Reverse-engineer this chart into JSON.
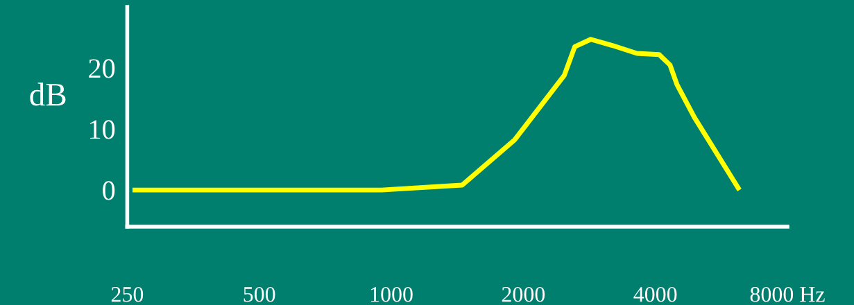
{
  "chart_data": {
    "type": "line",
    "ylabel": "dB",
    "log": "x",
    "grid": false,
    "marker": "none",
    "line_style": "solid",
    "x": [
      257,
      950,
      1450,
      1910,
      2480,
      2620,
      2850,
      3190,
      3630,
      4080,
      4320,
      4480,
      4910,
      6220
    ],
    "series": [
      {
        "color": "#ffff00",
        "values": [
          0,
          0,
          0.8,
          8.2,
          18.8,
          23.5,
          24.7,
          23.7,
          22.4,
          22.2,
          20.5,
          17.3,
          11.9,
          0
        ]
      }
    ],
    "xlim": [
      250,
      8000
    ],
    "xticks": [
      250,
      500,
      1000,
      2000,
      4000,
      {
        "value": 8000,
        "label": "8000 Hz"
      }
    ],
    "ylim": [
      -6,
      30
    ],
    "yticks": [
      0,
      10,
      20
    ]
  }
}
